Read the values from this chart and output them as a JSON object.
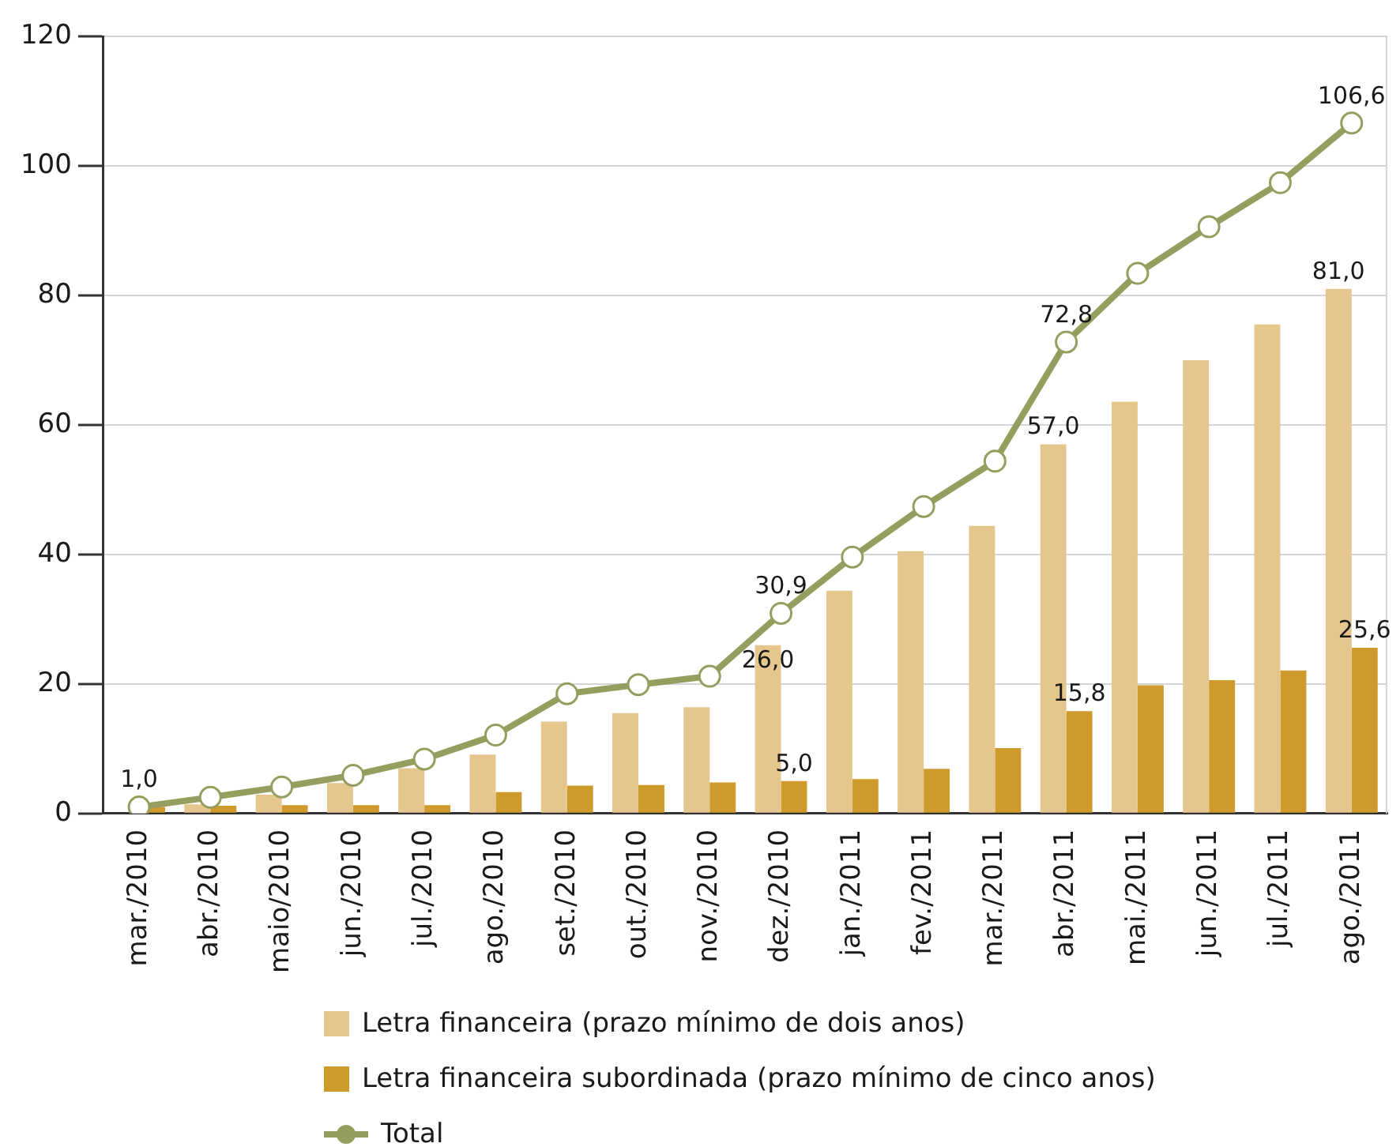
{
  "chart_data": {
    "type": "bar",
    "categories": [
      "mar./2010",
      "abr./2010",
      "maio/2010",
      "jun./2010",
      "jul./2010",
      "ago./2010",
      "set./2010",
      "out./2010",
      "nov./2010",
      "dez./2010",
      "jan./2011",
      "fev./2011",
      "mar./2011",
      "abr./2011",
      "mai./2011",
      "jun./2011",
      "jul./2011",
      "ago./2011"
    ],
    "series": [
      {
        "name": "Letra financeira (prazo mínimo de dois anos)",
        "type": "bar",
        "color": "#e5c68d",
        "values": [
          0,
          1.4,
          2.9,
          4.7,
          7.0,
          9.1,
          14.2,
          15.5,
          16.4,
          26.0,
          34.4,
          40.5,
          44.4,
          57.0,
          63.6,
          70.0,
          75.5,
          81.0
        ],
        "value_labels": [
          null,
          null,
          null,
          null,
          null,
          null,
          null,
          null,
          null,
          "26,0",
          null,
          null,
          null,
          "57,0",
          null,
          null,
          null,
          "81,0"
        ]
      },
      {
        "name": "Letra financeira subordinada (prazo mínimo de cinco anos)",
        "type": "bar",
        "color": "#cf9a2c",
        "values": [
          1.0,
          1.2,
          1.3,
          1.3,
          1.3,
          3.3,
          4.3,
          4.4,
          4.8,
          5.0,
          5.3,
          6.9,
          10.1,
          15.8,
          19.8,
          20.6,
          22.1,
          25.6
        ],
        "value_labels": [
          null,
          null,
          null,
          null,
          null,
          null,
          null,
          null,
          null,
          "5,0",
          null,
          null,
          null,
          "15,8",
          null,
          null,
          null,
          "25,6"
        ]
      },
      {
        "name": "Total",
        "type": "line",
        "color": "#959e5e",
        "values": [
          1.0,
          2.5,
          4.1,
          5.9,
          8.4,
          12.1,
          18.5,
          19.9,
          21.2,
          30.9,
          39.6,
          47.4,
          54.4,
          72.8,
          83.4,
          90.6,
          97.4,
          106.6
        ],
        "value_labels": [
          "1,0",
          null,
          null,
          null,
          null,
          null,
          null,
          null,
          null,
          "30,9",
          null,
          null,
          null,
          "72,8",
          null,
          null,
          null,
          "106,6"
        ]
      }
    ],
    "ylim": [
      0,
      120
    ],
    "yticks": [
      0,
      20,
      40,
      60,
      80,
      100,
      120
    ],
    "grid": "y",
    "legend": "bottom",
    "marker": "circle"
  }
}
